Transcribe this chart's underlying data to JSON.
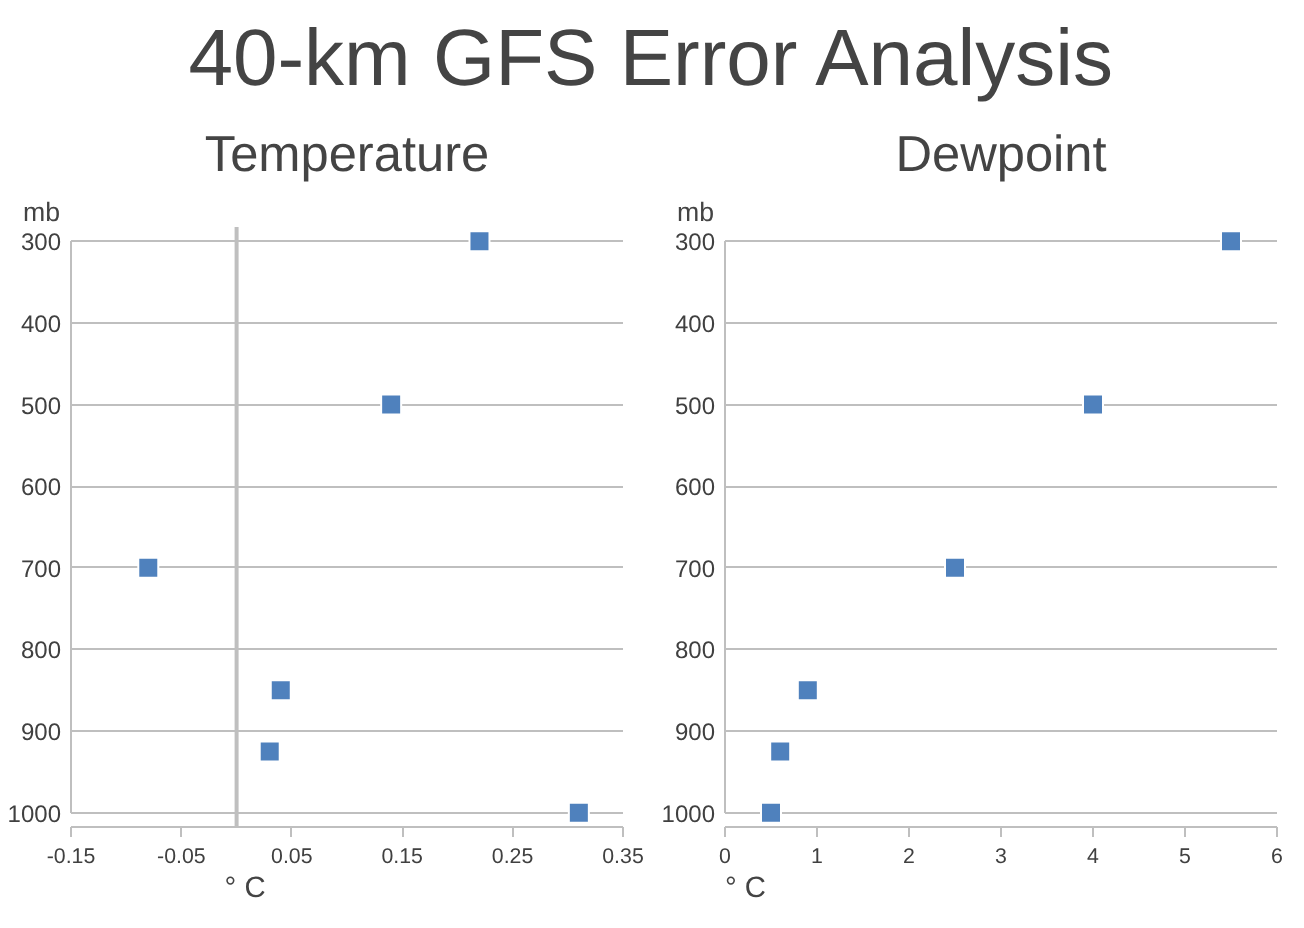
{
  "chart_data": [
    {
      "type": "scatter",
      "title": "40-km GFS Error Analysis",
      "subtitle": "Temperature",
      "xlabel": "° C",
      "ylabel": "mb",
      "marker": "square",
      "grid": "y",
      "x": [
        0.22,
        0.14,
        -0.08,
        0.04,
        0.03,
        0.31
      ],
      "series": [
        {
          "color": "#4f81bd",
          "values": [
            300,
            500,
            700,
            850,
            925,
            1000
          ]
        }
      ],
      "ref_lines": [
        {
          "axis": "x",
          "value": 0,
          "color": "#bfbfbf"
        }
      ],
      "xlim": [
        -0.15,
        0.35
      ],
      "xticks": [
        -0.15,
        -0.05,
        0.05,
        0.15,
        0.25,
        0.35
      ],
      "ylim": [
        1000,
        300
      ],
      "yticks": [
        300,
        400,
        500,
        600,
        700,
        800,
        900,
        1000
      ]
    },
    {
      "type": "scatter",
      "subtitle": "Dewpoint",
      "xlabel": "° C",
      "ylabel": "mb",
      "marker": "square",
      "grid": "y",
      "x": [
        5.5,
        4,
        2.5,
        0.9,
        0.6,
        0.5
      ],
      "series": [
        {
          "color": "#4f81bd",
          "values": [
            300,
            500,
            700,
            850,
            925,
            1000
          ]
        }
      ],
      "xlim": [
        0,
        6
      ],
      "xticks": [
        0,
        1,
        2,
        3,
        4,
        5,
        6
      ],
      "ylim": [
        1000,
        300
      ],
      "yticks": [
        300,
        400,
        500,
        600,
        700,
        800,
        900,
        1000
      ]
    }
  ]
}
